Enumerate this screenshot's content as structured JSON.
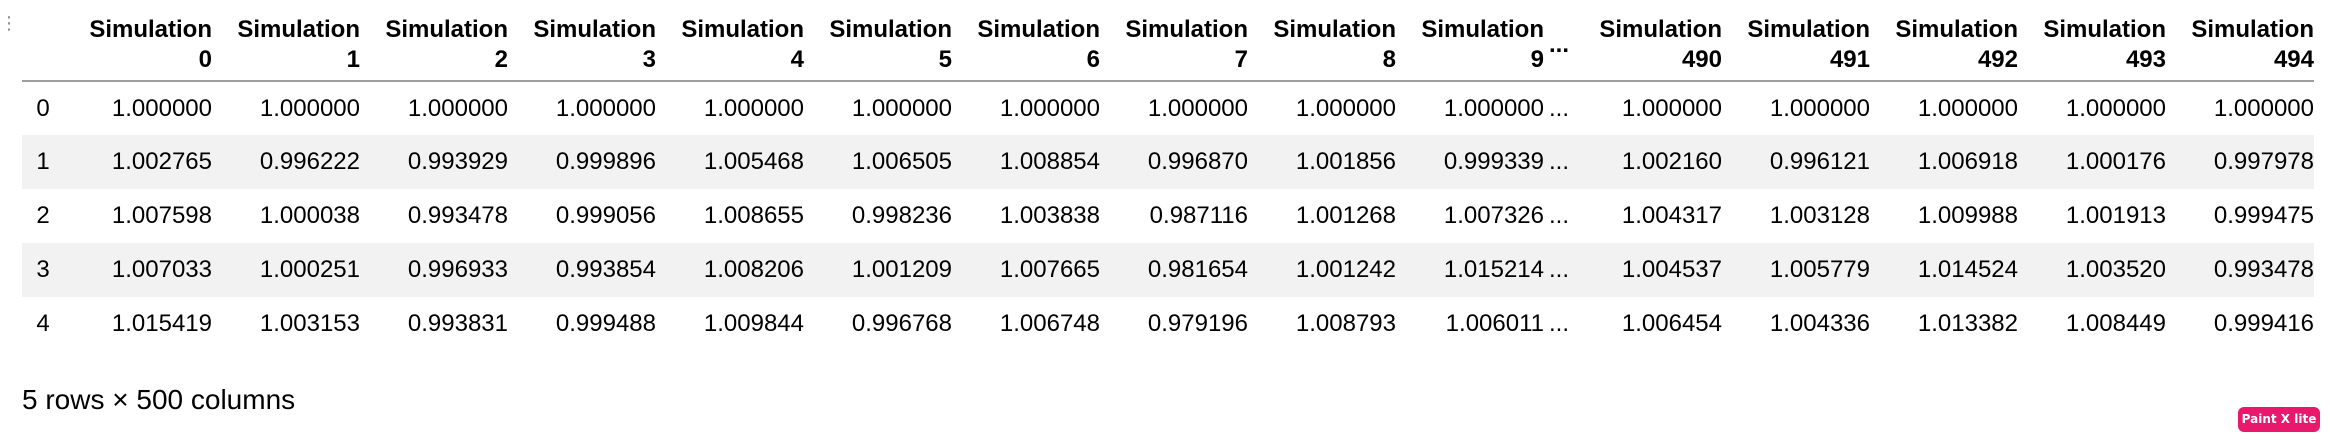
{
  "table": {
    "index_header": "",
    "columns": [
      [
        "Simulation",
        "0"
      ],
      [
        "Simulation",
        "1"
      ],
      [
        "Simulation",
        "2"
      ],
      [
        "Simulation",
        "3"
      ],
      [
        "Simulation",
        "4"
      ],
      [
        "Simulation",
        "5"
      ],
      [
        "Simulation",
        "6"
      ],
      [
        "Simulation",
        "7"
      ],
      [
        "Simulation",
        "8"
      ],
      [
        "Simulation",
        "9"
      ],
      [
        "...",
        ""
      ],
      [
        "Simulation",
        "490"
      ],
      [
        "Simulation",
        "491"
      ],
      [
        "Simulation",
        "492"
      ],
      [
        "Simulation",
        "493"
      ],
      [
        "Simulation",
        "494"
      ]
    ],
    "rows": [
      {
        "index": "0",
        "cells": [
          "1.000000",
          "1.000000",
          "1.000000",
          "1.000000",
          "1.000000",
          "1.000000",
          "1.000000",
          "1.000000",
          "1.000000",
          "1.000000",
          "...",
          "1.000000",
          "1.000000",
          "1.000000",
          "1.000000",
          "1.000000"
        ]
      },
      {
        "index": "1",
        "cells": [
          "1.002765",
          "0.996222",
          "0.993929",
          "0.999896",
          "1.005468",
          "1.006505",
          "1.008854",
          "0.996870",
          "1.001856",
          "0.999339",
          "...",
          "1.002160",
          "0.996121",
          "1.006918",
          "1.000176",
          "0.997978"
        ]
      },
      {
        "index": "2",
        "cells": [
          "1.007598",
          "1.000038",
          "0.993478",
          "0.999056",
          "1.008655",
          "0.998236",
          "1.003838",
          "0.987116",
          "1.001268",
          "1.007326",
          "...",
          "1.004317",
          "1.003128",
          "1.009988",
          "1.001913",
          "0.999475"
        ]
      },
      {
        "index": "3",
        "cells": [
          "1.007033",
          "1.000251",
          "0.996933",
          "0.993854",
          "1.008206",
          "1.001209",
          "1.007665",
          "0.981654",
          "1.001242",
          "1.015214",
          "...",
          "1.004537",
          "1.005779",
          "1.014524",
          "1.003520",
          "0.993478"
        ]
      },
      {
        "index": "4",
        "cells": [
          "1.015419",
          "1.003153",
          "0.993831",
          "0.999488",
          "1.009844",
          "0.996768",
          "1.006748",
          "0.979196",
          "1.008793",
          "1.006011",
          "...",
          "1.006454",
          "1.004336",
          "1.013382",
          "1.008449",
          "0.999416"
        ]
      }
    ]
  },
  "summary": "5 rows × 500 columns",
  "badge": {
    "label": "Paint X lite",
    "color": "#e8186c"
  },
  "drag_handle_icon": "drag-handle-icon"
}
